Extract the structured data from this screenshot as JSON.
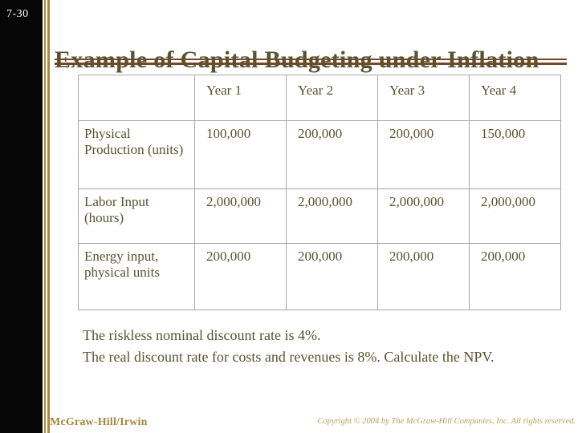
{
  "slide": {
    "slide_number": "7-30",
    "title": "Example of Capital Budgeting under Inflation",
    "footer_left": "McGraw-Hill/Irwin",
    "footer_right": "Copyright © 2004 by The McGraw-Hill Companies, Inc.  All rights reserved."
  },
  "table": {
    "columns": [
      "",
      "Year 1",
      "Year 2",
      "Year 3",
      "Year 4"
    ],
    "rows": [
      {
        "label": "Physical Production (units)",
        "values": [
          "100,000",
          "200,000",
          "200,000",
          "150,000"
        ]
      },
      {
        "label": "Labor Input (hours)",
        "values": [
          "2,000,000",
          "2,000,000",
          "2,000,000",
          "2,000,000"
        ]
      },
      {
        "label": "Energy input, physical units",
        "values": [
          "200,000",
          "200,000",
          "200,000",
          "200,000"
        ]
      }
    ]
  },
  "notes": {
    "line1": "The riskless nominal discount rate is 4%.",
    "line2": "The real discount rate for costs and revenues is 8%. Calculate the NPV."
  },
  "colors": {
    "accent_gold": "#a8893d",
    "text_olive": "#5b5130",
    "rule_brown": "#6e4a28",
    "table_border": "#a6a6a6",
    "footer_gold": "#a5873c",
    "copyright_gold": "#b9a05a",
    "sidebar_black": "#060606"
  }
}
